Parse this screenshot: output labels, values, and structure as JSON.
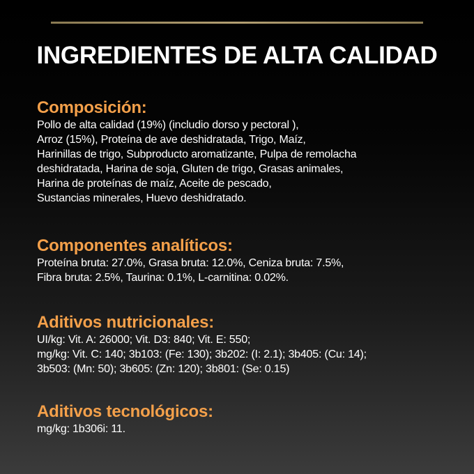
{
  "title": "INGREDIENTES DE ALTA CALIDAD",
  "accent_color": "#f4a04a",
  "sections": [
    {
      "heading": "Composición:",
      "lines": [
        "Pollo de alta calidad (19%) (includio dorso y pectoral ),",
        "Arroz (15%), Proteína de ave deshidratada, Trigo, Maíz,",
        "Harinillas de trigo, Subproducto aromatizante, Pulpa de remolacha",
        "deshidratada, Harina de soja, Gluten de trigo, Grasas animales,",
        "Harina de proteínas de maíz, Aceite de pescado,",
        "Sustancias minerales, Huevo deshidratado."
      ]
    },
    {
      "heading": "Componentes analíticos:",
      "lines": [
        "Proteína bruta: 27.0%, Grasa bruta: 12.0%, Ceniza bruta: 7.5%,",
        "Fibra bruta: 2.5%, Taurina: 0.1%, L-carnitina: 0.02%."
      ]
    },
    {
      "heading": "Aditivos nutricionales:",
      "lines": [
        "UI/kg: Vit. A: 26000; Vit. D3: 840; Vit. E: 550;",
        "mg/kg: Vit. C: 140; 3b103: (Fe: 130); 3b202: (I: 2.1); 3b405: (Cu: 14);",
        "3b503: (Mn: 50); 3b605: (Zn: 120); 3b801: (Se: 0.15)"
      ]
    },
    {
      "heading": "Aditivos tecnológicos:",
      "lines": [
        "mg/kg: 1b306i: 11."
      ]
    }
  ]
}
